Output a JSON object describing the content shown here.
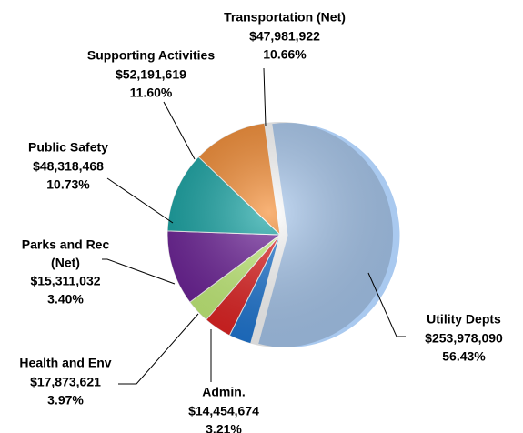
{
  "chart_data": {
    "type": "pie",
    "categories": [
      "Utility Depts",
      "Admin.",
      "Health and Env",
      "Parks and Rec (Net)",
      "Public Safety",
      "Supporting Activities",
      "Transportation (Net)"
    ],
    "values": [
      253978090,
      14454674,
      17873621,
      15311032,
      48318468,
      52191619,
      47981922
    ],
    "value_labels": [
      "$253,978,090",
      "$14,454,674",
      "$17,873,621",
      "$15,311,032",
      "$48,318,468",
      "$52,191,619",
      "$47,981,922"
    ],
    "percent_labels": [
      "56.43%",
      "3.21%",
      "3.97%",
      "3.40%",
      "10.73%",
      "11.60%",
      "10.66%"
    ],
    "colors": [
      "#a9c9ef",
      "#1f78d6",
      "#e42222",
      "#c6f27a",
      "#6b1f97",
      "#12a3a3",
      "#f58a2e"
    ],
    "exploded": [
      0
    ]
  }
}
